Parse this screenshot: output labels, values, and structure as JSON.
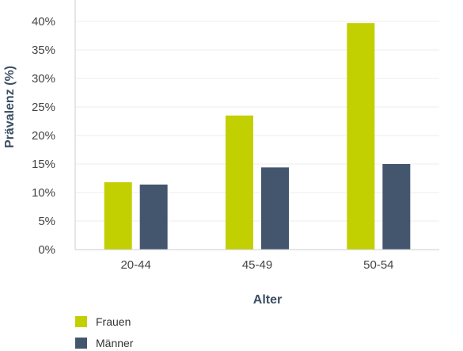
{
  "chart_data": {
    "type": "bar",
    "categories": [
      "20-44",
      "45-49",
      "50-54"
    ],
    "series": [
      {
        "name": "Frauen",
        "values": [
          11.8,
          23.5,
          39.7
        ],
        "color": "#c2cf00"
      },
      {
        "name": "Männer",
        "values": [
          11.4,
          14.4,
          15.0
        ],
        "color": "#43566e"
      }
    ],
    "xlabel": "Alter",
    "ylabel": "Prävalenz (%)",
    "ylim": [
      0,
      40
    ],
    "yticks": [
      "0%",
      "5%",
      "10%",
      "15%",
      "20%",
      "25%",
      "30%",
      "35%",
      "40%"
    ],
    "grid": true,
    "legend": "bottom-left"
  }
}
